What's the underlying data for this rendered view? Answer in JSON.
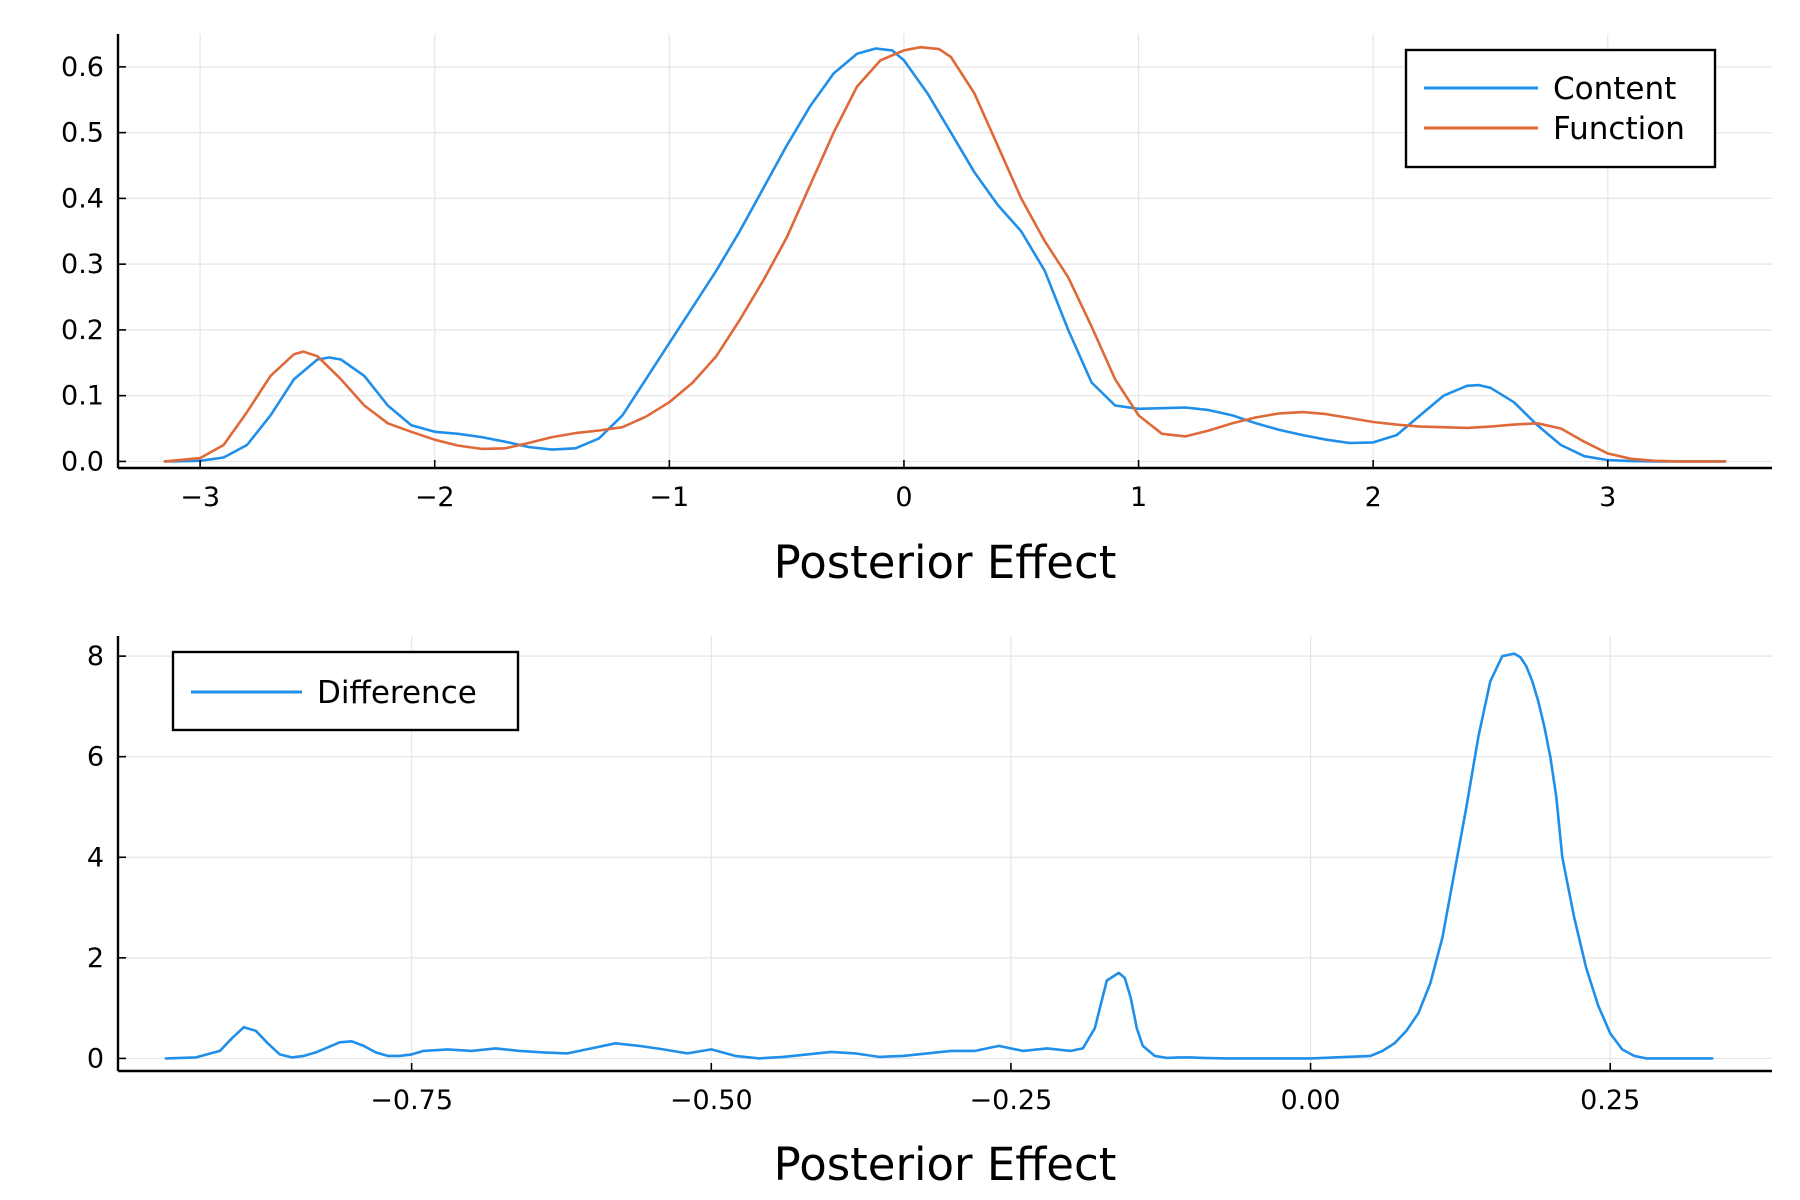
{
  "chart_data": [
    {
      "type": "line",
      "xlabel": "Posterior Effect",
      "ylabel": "",
      "xlim": [
        -3.35,
        3.7
      ],
      "ylim": [
        -0.01,
        0.65
      ],
      "xticks": [
        -3,
        -2,
        -1,
        0,
        1,
        2,
        3
      ],
      "xtick_labels": [
        "−3",
        "−2",
        "−1",
        "0",
        "1",
        "2",
        "3"
      ],
      "yticks": [
        0,
        0.1,
        0.2,
        0.3,
        0.4,
        0.5,
        0.6
      ],
      "ytick_labels": [
        "0.0",
        "0.1",
        "0.2",
        "0.3",
        "0.4",
        "0.5",
        "0.6"
      ],
      "grid": true,
      "legend_position": "top-right",
      "series": [
        {
          "name": "Content",
          "color": "#1f8fea",
          "x": [
            -3.15,
            -3.0,
            -2.9,
            -2.8,
            -2.7,
            -2.6,
            -2.5,
            -2.45,
            -2.4,
            -2.3,
            -2.2,
            -2.1,
            -2.0,
            -1.9,
            -1.8,
            -1.7,
            -1.6,
            -1.5,
            -1.4,
            -1.3,
            -1.2,
            -1.1,
            -1.0,
            -0.9,
            -0.8,
            -0.7,
            -0.6,
            -0.5,
            -0.4,
            -0.3,
            -0.2,
            -0.12,
            -0.05,
            0.0,
            0.1,
            0.2,
            0.3,
            0.4,
            0.5,
            0.6,
            0.7,
            0.8,
            0.9,
            1.0,
            1.1,
            1.2,
            1.3,
            1.4,
            1.5,
            1.6,
            1.7,
            1.8,
            1.9,
            2.0,
            2.1,
            2.2,
            2.3,
            2.4,
            2.45,
            2.5,
            2.6,
            2.7,
            2.8,
            2.9,
            3.0,
            3.1,
            3.2,
            3.3,
            3.5
          ],
          "y": [
            0.0,
            0.001,
            0.006,
            0.025,
            0.07,
            0.125,
            0.155,
            0.158,
            0.155,
            0.13,
            0.085,
            0.055,
            0.045,
            0.042,
            0.037,
            0.03,
            0.022,
            0.018,
            0.02,
            0.035,
            0.07,
            0.125,
            0.18,
            0.235,
            0.29,
            0.35,
            0.415,
            0.48,
            0.54,
            0.59,
            0.62,
            0.628,
            0.625,
            0.61,
            0.56,
            0.5,
            0.44,
            0.39,
            0.35,
            0.29,
            0.2,
            0.12,
            0.085,
            0.08,
            0.081,
            0.082,
            0.078,
            0.07,
            0.058,
            0.048,
            0.04,
            0.033,
            0.028,
            0.029,
            0.04,
            0.07,
            0.1,
            0.115,
            0.116,
            0.112,
            0.09,
            0.055,
            0.025,
            0.008,
            0.002,
            0.0005,
            0.0,
            0.0,
            0.0
          ]
        },
        {
          "name": "Function",
          "color": "#e0693a",
          "x": [
            -3.15,
            -3.0,
            -2.9,
            -2.8,
            -2.7,
            -2.6,
            -2.56,
            -2.5,
            -2.4,
            -2.3,
            -2.2,
            -2.1,
            -2.0,
            -1.9,
            -1.8,
            -1.7,
            -1.6,
            -1.5,
            -1.4,
            -1.3,
            -1.2,
            -1.1,
            -1.0,
            -0.9,
            -0.8,
            -0.7,
            -0.6,
            -0.5,
            -0.4,
            -0.3,
            -0.2,
            -0.1,
            0.0,
            0.07,
            0.15,
            0.2,
            0.3,
            0.4,
            0.5,
            0.6,
            0.7,
            0.8,
            0.9,
            1.0,
            1.1,
            1.2,
            1.3,
            1.4,
            1.5,
            1.6,
            1.7,
            1.8,
            1.9,
            2.0,
            2.1,
            2.2,
            2.3,
            2.4,
            2.5,
            2.6,
            2.7,
            2.8,
            2.9,
            3.0,
            3.1,
            3.2,
            3.3,
            3.5
          ],
          "y": [
            0.0,
            0.005,
            0.025,
            0.075,
            0.13,
            0.163,
            0.167,
            0.16,
            0.125,
            0.085,
            0.058,
            0.045,
            0.033,
            0.024,
            0.019,
            0.02,
            0.028,
            0.037,
            0.043,
            0.047,
            0.052,
            0.068,
            0.09,
            0.12,
            0.16,
            0.215,
            0.275,
            0.34,
            0.42,
            0.5,
            0.57,
            0.61,
            0.625,
            0.63,
            0.627,
            0.615,
            0.56,
            0.48,
            0.4,
            0.335,
            0.28,
            0.205,
            0.125,
            0.07,
            0.042,
            0.038,
            0.047,
            0.058,
            0.067,
            0.073,
            0.075,
            0.072,
            0.066,
            0.06,
            0.056,
            0.053,
            0.052,
            0.051,
            0.053,
            0.056,
            0.058,
            0.05,
            0.03,
            0.012,
            0.004,
            0.001,
            0.0,
            0.0
          ]
        }
      ]
    },
    {
      "type": "line",
      "xlabel": "Posterior Effect",
      "ylabel": "",
      "xlim": [
        -0.995,
        0.385
      ],
      "ylim": [
        -0.25,
        8.4
      ],
      "xticks": [
        -0.75,
        -0.5,
        -0.25,
        0.0,
        0.25
      ],
      "xtick_labels": [
        "−0.75",
        "−0.50",
        "−0.25",
        "0.00",
        "0.25"
      ],
      "yticks": [
        0,
        2,
        4,
        6,
        8
      ],
      "ytick_labels": [
        "0",
        "2",
        "4",
        "6",
        "8"
      ],
      "grid": true,
      "legend_position": "top-left",
      "series": [
        {
          "name": "Difference",
          "color": "#1f8fea",
          "x": [
            -0.955,
            -0.93,
            -0.91,
            -0.9,
            -0.89,
            -0.88,
            -0.87,
            -0.86,
            -0.85,
            -0.84,
            -0.83,
            -0.82,
            -0.81,
            -0.8,
            -0.79,
            -0.78,
            -0.77,
            -0.76,
            -0.75,
            -0.74,
            -0.72,
            -0.7,
            -0.68,
            -0.66,
            -0.64,
            -0.62,
            -0.6,
            -0.58,
            -0.56,
            -0.54,
            -0.52,
            -0.5,
            -0.48,
            -0.46,
            -0.44,
            -0.42,
            -0.4,
            -0.38,
            -0.36,
            -0.34,
            -0.32,
            -0.3,
            -0.28,
            -0.26,
            -0.24,
            -0.22,
            -0.2,
            -0.19,
            -0.18,
            -0.17,
            -0.16,
            -0.155,
            -0.15,
            -0.145,
            -0.14,
            -0.13,
            -0.12,
            -0.11,
            -0.1,
            -0.09,
            -0.07,
            -0.05,
            0.0,
            0.05,
            0.06,
            0.07,
            0.08,
            0.09,
            0.1,
            0.11,
            0.12,
            0.13,
            0.14,
            0.15,
            0.16,
            0.17,
            0.175,
            0.18,
            0.185,
            0.19,
            0.195,
            0.2,
            0.205,
            0.21,
            0.22,
            0.23,
            0.24,
            0.25,
            0.26,
            0.27,
            0.28,
            0.29,
            0.3,
            0.31,
            0.32,
            0.335
          ],
          "y": [
            0.0,
            0.02,
            0.15,
            0.4,
            0.62,
            0.55,
            0.3,
            0.08,
            0.02,
            0.05,
            0.12,
            0.22,
            0.32,
            0.34,
            0.25,
            0.12,
            0.05,
            0.05,
            0.08,
            0.15,
            0.18,
            0.15,
            0.2,
            0.15,
            0.12,
            0.1,
            0.2,
            0.3,
            0.25,
            0.18,
            0.1,
            0.18,
            0.05,
            0.0,
            0.03,
            0.08,
            0.13,
            0.1,
            0.03,
            0.05,
            0.1,
            0.15,
            0.15,
            0.25,
            0.15,
            0.2,
            0.15,
            0.2,
            0.6,
            1.55,
            1.7,
            1.6,
            1.2,
            0.6,
            0.25,
            0.05,
            0.01,
            0.02,
            0.02,
            0.01,
            0.0,
            0.0,
            0.0,
            0.05,
            0.15,
            0.3,
            0.55,
            0.9,
            1.5,
            2.4,
            3.7,
            5.0,
            6.4,
            7.5,
            8.0,
            8.05,
            7.98,
            7.8,
            7.5,
            7.1,
            6.6,
            6.0,
            5.2,
            4.0,
            2.8,
            1.8,
            1.05,
            0.5,
            0.18,
            0.05,
            0.0,
            0.0,
            0.0,
            0.0,
            0.0,
            0.0
          ]
        }
      ]
    }
  ]
}
